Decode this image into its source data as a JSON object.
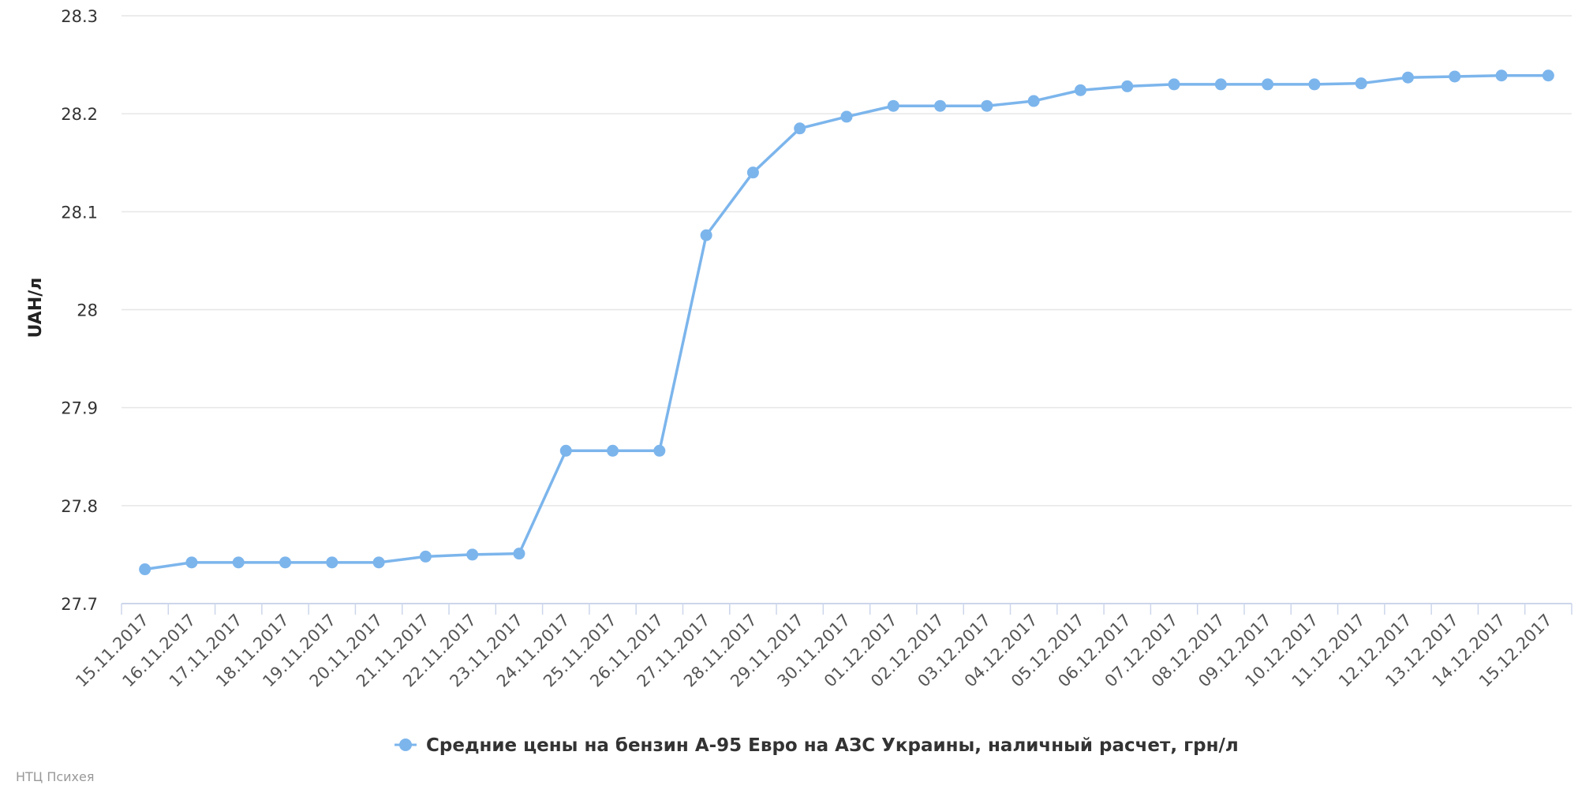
{
  "chart_data": {
    "type": "line",
    "ylabel": "UAH/л",
    "xlabel": "",
    "title": "",
    "ylim": [
      27.7,
      28.3
    ],
    "yticks": [
      27.7,
      27.8,
      27.9,
      28,
      28.1,
      28.2,
      28.3
    ],
    "grid": true,
    "legend_position": "bottom-center",
    "categories": [
      "15.11.2017",
      "16.11.2017",
      "17.11.2017",
      "18.11.2017",
      "19.11.2017",
      "20.11.2017",
      "21.11.2017",
      "22.11.2017",
      "23.11.2017",
      "24.11.2017",
      "25.11.2017",
      "26.11.2017",
      "27.11.2017",
      "28.11.2017",
      "29.11.2017",
      "30.11.2017",
      "01.12.2017",
      "02.12.2017",
      "03.12.2017",
      "04.12.2017",
      "05.12.2017",
      "06.12.2017",
      "07.12.2017",
      "08.12.2017",
      "09.12.2017",
      "10.12.2017",
      "11.12.2017",
      "12.12.2017",
      "13.12.2017",
      "14.12.2017",
      "15.12.2017"
    ],
    "series": [
      {
        "name": "Средние цены на бензин А-95 Евро на АЗС Украины, наличный расчет, грн/л",
        "color": "#7cb5ec",
        "values": [
          27.735,
          27.742,
          27.742,
          27.742,
          27.742,
          27.742,
          27.748,
          27.75,
          27.751,
          27.856,
          27.856,
          27.856,
          28.076,
          28.14,
          28.185,
          28.197,
          28.208,
          28.208,
          28.208,
          28.213,
          28.224,
          28.228,
          28.23,
          28.23,
          28.23,
          28.23,
          28.231,
          28.237,
          28.238,
          28.239,
          28.239
        ]
      }
    ]
  },
  "credits": "НТЦ Психея"
}
